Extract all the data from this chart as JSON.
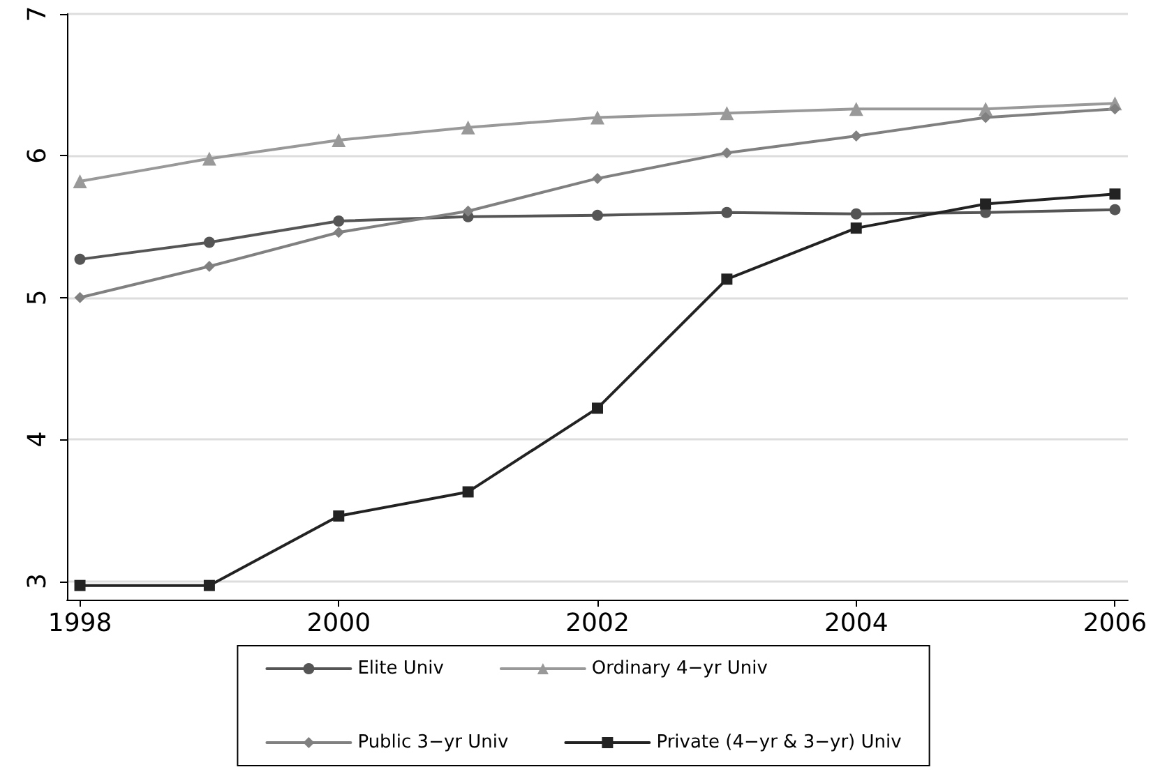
{
  "chart_data": {
    "type": "line",
    "x": [
      1998,
      1999,
      2000,
      2001,
      2002,
      2003,
      2004,
      2005,
      2006
    ],
    "series": [
      {
        "name": "Elite Univ",
        "color": "#555555",
        "marker": "circle",
        "values": [
          5.27,
          5.39,
          5.54,
          5.57,
          5.58,
          5.6,
          5.59,
          5.6,
          5.62
        ]
      },
      {
        "name": "Ordinary 4−yr Univ",
        "color": "#999999",
        "marker": "triangle",
        "values": [
          5.82,
          5.98,
          6.11,
          6.2,
          6.27,
          6.3,
          6.33,
          6.33,
          6.37
        ]
      },
      {
        "name": "Public 3−yr Univ",
        "color": "#808080",
        "marker": "diamond",
        "values": [
          5.0,
          5.22,
          5.46,
          5.61,
          5.84,
          6.02,
          6.14,
          6.27,
          6.33
        ]
      },
      {
        "name": "Private (4−yr & 3−yr) Univ",
        "color": "#222222",
        "marker": "square",
        "values": [
          2.97,
          2.97,
          3.46,
          3.63,
          4.22,
          5.13,
          5.49,
          5.66,
          5.73
        ]
      }
    ],
    "xlim": [
      1997.9,
      2006.1
    ],
    "xticks": [
      1998,
      2000,
      2002,
      2004,
      2006
    ],
    "ylim": [
      2.87,
      7
    ],
    "yticks": [
      3,
      4,
      5,
      6,
      7
    ],
    "grid": "y",
    "legend": "bottom",
    "line_style": "solid"
  }
}
